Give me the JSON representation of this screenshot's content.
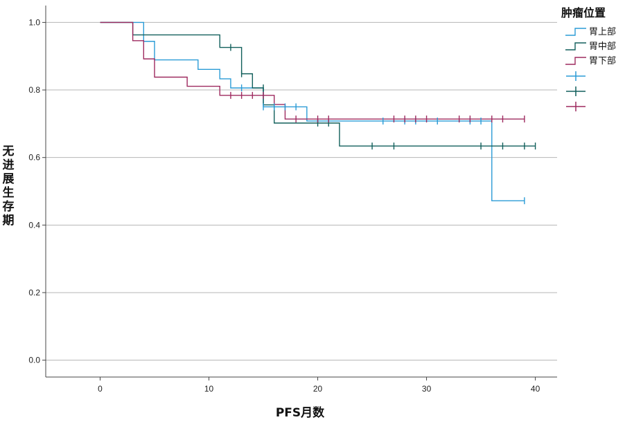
{
  "chart_data": {
    "type": "line",
    "subtype": "kaplan-meier step curve",
    "xlabel": "PFS月数",
    "ylabel": "无进展生存期",
    "xlim": [
      -5,
      42
    ],
    "ylim": [
      -0.05,
      1.05
    ],
    "xticks": [
      0,
      10,
      20,
      30,
      40
    ],
    "yticks": [
      0.0,
      0.2,
      0.4,
      0.6,
      0.8,
      1.0
    ],
    "ytick_labels": [
      "0.0",
      "0.2",
      "0.4",
      "0.6",
      "0.8",
      "1.0"
    ],
    "grid": "horizontal",
    "legend": {
      "title": "肿瘤位置",
      "placement": "right",
      "entries": [
        "胃上部",
        "胃中部",
        "胃下部"
      ]
    },
    "series": [
      {
        "name": "胃上部",
        "color": "#2a9bd6",
        "steps": [
          [
            0,
            1.0
          ],
          [
            4,
            0.944
          ],
          [
            5,
            0.889
          ],
          [
            9,
            0.861
          ],
          [
            11,
            0.833
          ],
          [
            12,
            0.806
          ],
          [
            15,
            0.75
          ],
          [
            19,
            0.708
          ],
          [
            36,
            0.472
          ],
          [
            39,
            0.472
          ]
        ],
        "censored": [
          [
            13,
            0.806
          ],
          [
            15,
            0.75
          ],
          [
            16,
            0.75
          ],
          [
            17,
            0.75
          ],
          [
            18,
            0.75
          ],
          [
            26,
            0.708
          ],
          [
            28,
            0.708
          ],
          [
            29,
            0.708
          ],
          [
            31,
            0.708
          ],
          [
            34,
            0.708
          ],
          [
            35,
            0.708
          ],
          [
            39,
            0.472
          ]
        ]
      },
      {
        "name": "胃中部",
        "color": "#115f5b",
        "steps": [
          [
            0,
            1.0
          ],
          [
            3,
            0.963
          ],
          [
            11,
            0.926
          ],
          [
            13,
            0.848
          ],
          [
            14,
            0.806
          ],
          [
            15,
            0.756
          ],
          [
            16,
            0.702
          ],
          [
            22,
            0.634
          ],
          [
            40,
            0.634
          ]
        ],
        "censored": [
          [
            12,
            0.926
          ],
          [
            13,
            0.848
          ],
          [
            15,
            0.806
          ],
          [
            20,
            0.702
          ],
          [
            21,
            0.702
          ],
          [
            25,
            0.634
          ],
          [
            27,
            0.634
          ],
          [
            35,
            0.634
          ],
          [
            37,
            0.634
          ],
          [
            39,
            0.634
          ],
          [
            40,
            0.634
          ]
        ]
      },
      {
        "name": "胃下部",
        "color": "#9e2a5f",
        "steps": [
          [
            0,
            1.0
          ],
          [
            3,
            0.946
          ],
          [
            4,
            0.892
          ],
          [
            5,
            0.838
          ],
          [
            8,
            0.811
          ],
          [
            11,
            0.784
          ],
          [
            16,
            0.757
          ],
          [
            17,
            0.714
          ],
          [
            39,
            0.714
          ]
        ],
        "censored": [
          [
            12,
            0.784
          ],
          [
            13,
            0.784
          ],
          [
            14,
            0.784
          ],
          [
            15,
            0.784
          ],
          [
            18,
            0.714
          ],
          [
            20,
            0.714
          ],
          [
            21,
            0.714
          ],
          [
            27,
            0.714
          ],
          [
            28,
            0.714
          ],
          [
            29,
            0.714
          ],
          [
            30,
            0.714
          ],
          [
            33,
            0.714
          ],
          [
            34,
            0.714
          ],
          [
            36,
            0.714
          ],
          [
            37,
            0.714
          ],
          [
            39,
            0.714
          ]
        ]
      }
    ]
  }
}
